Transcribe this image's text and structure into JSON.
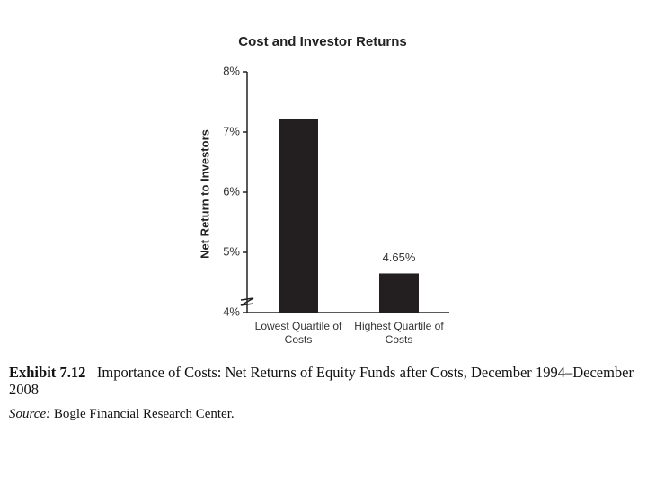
{
  "chart_data": {
    "type": "bar",
    "title": "Cost and Investor Returns",
    "y_label": "Net Return to Investors",
    "categories": [
      "Lowest Quartile of Costs",
      "Highest Quartile of Costs"
    ],
    "values": [
      7.22,
      4.65
    ],
    "value_labels": [
      null,
      "4.65%"
    ],
    "color": "#231f20",
    "ylim": [
      4,
      8
    ],
    "yticks": [
      {
        "value": 4,
        "label": "4%"
      },
      {
        "value": 5,
        "label": "5%"
      },
      {
        "value": 6,
        "label": "6%"
      },
      {
        "value": 7,
        "label": "7%"
      },
      {
        "value": 8,
        "label": "8%"
      }
    ],
    "grid": false,
    "caption_label": "Exhibit 7.12",
    "caption": "Importance of Costs: Net Returns of Equity Funds after Costs, December 1994–December 2008",
    "source_label": "Source:",
    "source": "Bogle Financial Research Center."
  }
}
